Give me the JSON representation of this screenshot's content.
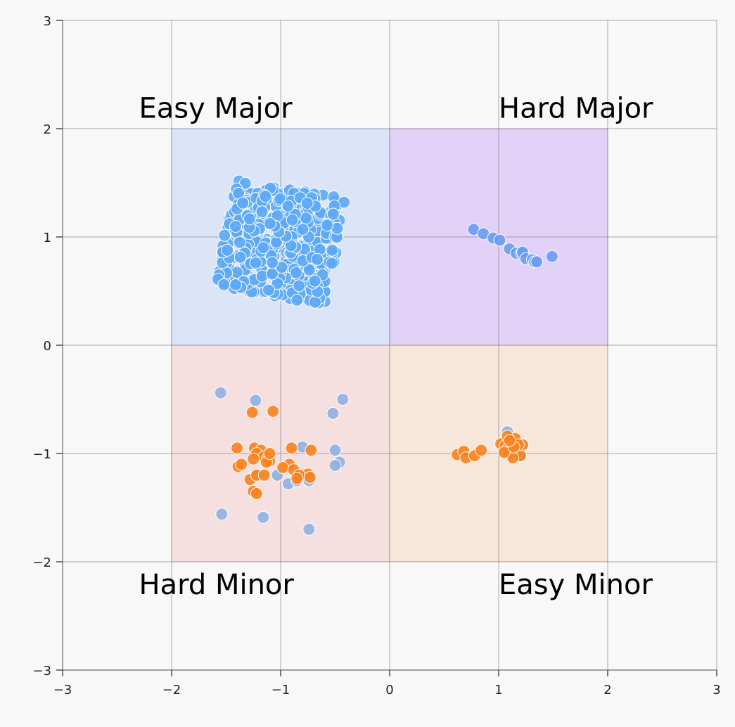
{
  "chart_data": {
    "type": "scatter",
    "title": "",
    "xlabel": "",
    "ylabel": "",
    "xlim": [
      -3,
      3
    ],
    "ylim": [
      -3,
      3
    ],
    "grid": true,
    "x_ticks": [
      {
        "value": -3,
        "label": "−3"
      },
      {
        "value": -2,
        "label": "−2"
      },
      {
        "value": -1,
        "label": "−1"
      },
      {
        "value": 0,
        "label": "0"
      },
      {
        "value": 1,
        "label": "1"
      },
      {
        "value": 2,
        "label": "2"
      },
      {
        "value": 3,
        "label": "3"
      }
    ],
    "y_ticks": [
      {
        "value": -3,
        "label": "−3"
      },
      {
        "value": -2,
        "label": "−2"
      },
      {
        "value": -1,
        "label": "−1"
      },
      {
        "value": 0,
        "label": "0"
      },
      {
        "value": 1,
        "label": "1"
      },
      {
        "value": 2,
        "label": "2"
      },
      {
        "value": 3,
        "label": "3"
      }
    ],
    "regions": [
      {
        "label": "Easy Major",
        "x": [
          -2,
          0
        ],
        "y": [
          0,
          2
        ],
        "color": "#a9c4f5"
      },
      {
        "label": "Hard Major",
        "x": [
          0,
          2
        ],
        "y": [
          0,
          2
        ],
        "color": "#b989f7"
      },
      {
        "label": "Hard Minor",
        "x": [
          -2,
          0
        ],
        "y": [
          -2,
          0
        ],
        "color": "#f2b3b3"
      },
      {
        "label": "Easy Minor",
        "x": [
          0,
          2
        ],
        "y": [
          -2,
          0
        ],
        "color": "#f5c6a2"
      }
    ],
    "region_labels": [
      {
        "text": "Easy Major",
        "x": -2.3,
        "y": 2.1
      },
      {
        "text": "Hard Major",
        "x": 1.0,
        "y": 2.1
      },
      {
        "text": "Hard Minor",
        "x": -2.3,
        "y": -2.3
      },
      {
        "text": "Easy Minor",
        "x": 1.0,
        "y": -2.3
      }
    ],
    "series": [
      {
        "color": "#5da9f6",
        "cluster": {
          "center": [
            -1.0,
            0.95
          ],
          "half_size": [
            0.52,
            0.5
          ],
          "rotation_deg": -10,
          "count": 420
        },
        "points": []
      },
      {
        "color": "#6b9cf2",
        "points": [
          [
            0.77,
            1.07
          ],
          [
            0.86,
            1.03
          ],
          [
            0.95,
            0.99
          ],
          [
            1.01,
            0.97
          ],
          [
            1.1,
            0.89
          ],
          [
            1.16,
            0.85
          ],
          [
            1.21,
            0.85
          ],
          [
            1.22,
            0.86
          ],
          [
            1.25,
            0.8
          ],
          [
            1.31,
            0.79
          ],
          [
            1.33,
            0.77
          ],
          [
            1.35,
            0.77
          ],
          [
            1.49,
            0.82
          ]
        ]
      },
      {
        "color": "#8fb0e2",
        "points": [
          [
            -1.55,
            -0.44
          ],
          [
            -1.23,
            -0.51
          ],
          [
            -0.43,
            -0.5
          ],
          [
            -0.52,
            -0.63
          ],
          [
            -0.8,
            -0.94
          ],
          [
            -0.5,
            -0.97
          ],
          [
            -0.46,
            -1.08
          ],
          [
            -0.5,
            -1.11
          ],
          [
            -0.74,
            -1.25
          ],
          [
            -0.93,
            -1.28
          ],
          [
            -1.2,
            -1.2
          ],
          [
            -1.03,
            -1.2
          ],
          [
            -1.54,
            -1.56
          ],
          [
            -1.16,
            -1.59
          ],
          [
            -0.74,
            -1.7
          ],
          [
            -0.85,
            -1.25
          ],
          [
            1.08,
            -0.8
          ],
          [
            1.13,
            -0.95
          ],
          [
            1.2,
            -1.02
          ],
          [
            1.16,
            -0.9
          ]
        ]
      },
      {
        "color": "#f7821e",
        "points": [
          [
            -1.26,
            -0.62
          ],
          [
            -1.07,
            -0.61
          ],
          [
            -1.4,
            -0.95
          ],
          [
            -1.24,
            -0.95
          ],
          [
            -1.18,
            -0.97
          ],
          [
            -1.22,
            -1.0
          ],
          [
            -1.15,
            -1.03
          ],
          [
            -1.12,
            -1.05
          ],
          [
            -1.25,
            -1.05
          ],
          [
            -1.1,
            -1.07
          ],
          [
            -1.13,
            -1.08
          ],
          [
            -0.9,
            -0.95
          ],
          [
            -0.72,
            -0.97
          ],
          [
            -0.92,
            -1.1
          ],
          [
            -0.98,
            -1.13
          ],
          [
            -0.88,
            -1.15
          ],
          [
            -0.75,
            -1.19
          ],
          [
            -0.83,
            -1.2
          ],
          [
            -0.85,
            -1.23
          ],
          [
            -0.73,
            -1.22
          ],
          [
            -1.39,
            -1.12
          ],
          [
            -1.36,
            -1.1
          ],
          [
            -1.28,
            -1.24
          ],
          [
            -1.22,
            -1.2
          ],
          [
            -1.15,
            -1.2
          ],
          [
            -1.25,
            -1.35
          ],
          [
            -1.22,
            -1.37
          ],
          [
            -1.1,
            -1.0
          ],
          [
            0.62,
            -1.01
          ],
          [
            0.68,
            -0.98
          ],
          [
            0.7,
            -1.04
          ],
          [
            0.78,
            -1.02
          ],
          [
            0.84,
            -0.97
          ],
          [
            1.02,
            -0.91
          ],
          [
            1.06,
            -0.93
          ],
          [
            1.09,
            -0.95
          ],
          [
            1.1,
            -1.0
          ],
          [
            1.12,
            -0.88
          ],
          [
            1.15,
            -0.86
          ],
          [
            1.17,
            -0.98
          ],
          [
            1.2,
            -1.02
          ],
          [
            1.22,
            -0.92
          ],
          [
            1.13,
            -1.04
          ],
          [
            1.08,
            -0.84
          ],
          [
            1.18,
            -0.92
          ],
          [
            1.05,
            -0.99
          ],
          [
            1.14,
            -0.94
          ],
          [
            1.1,
            -0.88
          ]
        ]
      }
    ]
  }
}
